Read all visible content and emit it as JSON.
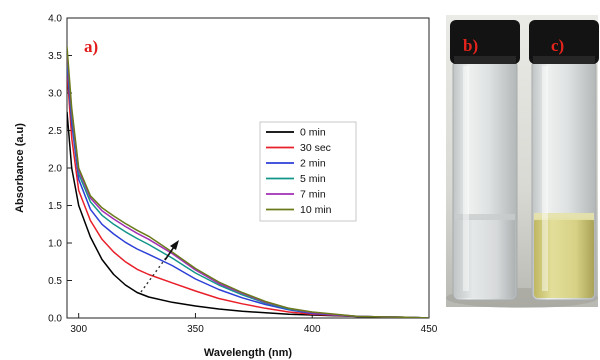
{
  "chart_data": {
    "type": "line",
    "panel_label": "a)",
    "xlabel": "Wavelength (nm)",
    "ylabel": "Absorbance (a.u)",
    "xlim": [
      295,
      450
    ],
    "ylim": [
      0,
      4.0
    ],
    "xticks": [
      300,
      350,
      400,
      450
    ],
    "yticks": [
      0.0,
      0.5,
      1.0,
      1.5,
      2.0,
      2.5,
      3.0,
      3.5,
      4.0
    ],
    "legend_position": "center-right",
    "series": [
      {
        "name": "0 min",
        "color": "#000000",
        "points": [
          [
            295,
            2.75
          ],
          [
            297,
            2.0
          ],
          [
            300,
            1.5
          ],
          [
            305,
            1.08
          ],
          [
            310,
            0.78
          ],
          [
            315,
            0.58
          ],
          [
            320,
            0.44
          ],
          [
            325,
            0.34
          ],
          [
            330,
            0.28
          ],
          [
            340,
            0.21
          ],
          [
            350,
            0.16
          ],
          [
            360,
            0.12
          ],
          [
            370,
            0.09
          ],
          [
            380,
            0.07
          ],
          [
            390,
            0.05
          ],
          [
            400,
            0.04
          ],
          [
            420,
            0.02
          ],
          [
            440,
            0.01
          ],
          [
            450,
            0.0
          ]
        ]
      },
      {
        "name": "30 sec",
        "color": "#e8202a",
        "points": [
          [
            295,
            3.3
          ],
          [
            297,
            2.4
          ],
          [
            300,
            1.7
          ],
          [
            305,
            1.3
          ],
          [
            310,
            1.05
          ],
          [
            315,
            0.88
          ],
          [
            320,
            0.75
          ],
          [
            325,
            0.65
          ],
          [
            330,
            0.58
          ],
          [
            340,
            0.47
          ],
          [
            350,
            0.36
          ],
          [
            360,
            0.26
          ],
          [
            370,
            0.19
          ],
          [
            380,
            0.13
          ],
          [
            390,
            0.08
          ],
          [
            400,
            0.05
          ],
          [
            420,
            0.02
          ],
          [
            440,
            0.01
          ],
          [
            450,
            0.0
          ]
        ]
      },
      {
        "name": "2 min",
        "color": "#2c3fd6",
        "points": [
          [
            295,
            3.4
          ],
          [
            297,
            2.6
          ],
          [
            300,
            1.85
          ],
          [
            305,
            1.45
          ],
          [
            310,
            1.25
          ],
          [
            315,
            1.12
          ],
          [
            320,
            1.01
          ],
          [
            325,
            0.92
          ],
          [
            330,
            0.85
          ],
          [
            340,
            0.7
          ],
          [
            350,
            0.52
          ],
          [
            360,
            0.38
          ],
          [
            370,
            0.27
          ],
          [
            380,
            0.18
          ],
          [
            390,
            0.11
          ],
          [
            400,
            0.06
          ],
          [
            420,
            0.02
          ],
          [
            440,
            0.01
          ],
          [
            450,
            0.0
          ]
        ]
      },
      {
        "name": "5 min",
        "color": "#12968a",
        "points": [
          [
            295,
            3.5
          ],
          [
            297,
            2.7
          ],
          [
            300,
            1.92
          ],
          [
            305,
            1.55
          ],
          [
            310,
            1.37
          ],
          [
            315,
            1.25
          ],
          [
            320,
            1.15
          ],
          [
            325,
            1.06
          ],
          [
            330,
            0.98
          ],
          [
            340,
            0.8
          ],
          [
            350,
            0.6
          ],
          [
            360,
            0.44
          ],
          [
            370,
            0.31
          ],
          [
            380,
            0.2
          ],
          [
            390,
            0.12
          ],
          [
            400,
            0.07
          ],
          [
            420,
            0.02
          ],
          [
            440,
            0.01
          ],
          [
            450,
            0.0
          ]
        ]
      },
      {
        "name": "7 min",
        "color": "#a12fb5",
        "points": [
          [
            295,
            3.55
          ],
          [
            297,
            2.75
          ],
          [
            300,
            1.97
          ],
          [
            305,
            1.6
          ],
          [
            310,
            1.43
          ],
          [
            315,
            1.32
          ],
          [
            320,
            1.22
          ],
          [
            325,
            1.13
          ],
          [
            330,
            1.05
          ],
          [
            340,
            0.86
          ],
          [
            350,
            0.64
          ],
          [
            360,
            0.46
          ],
          [
            370,
            0.33
          ],
          [
            380,
            0.21
          ],
          [
            390,
            0.13
          ],
          [
            400,
            0.07
          ],
          [
            420,
            0.02
          ],
          [
            440,
            0.01
          ],
          [
            450,
            0.0
          ]
        ]
      },
      {
        "name": "10 min",
        "color": "#6b7a1a",
        "points": [
          [
            295,
            3.62
          ],
          [
            297,
            2.8
          ],
          [
            300,
            2.0
          ],
          [
            305,
            1.63
          ],
          [
            310,
            1.47
          ],
          [
            315,
            1.36
          ],
          [
            320,
            1.26
          ],
          [
            325,
            1.17
          ],
          [
            330,
            1.09
          ],
          [
            340,
            0.88
          ],
          [
            350,
            0.66
          ],
          [
            360,
            0.48
          ],
          [
            370,
            0.34
          ],
          [
            380,
            0.22
          ],
          [
            390,
            0.13
          ],
          [
            400,
            0.08
          ],
          [
            420,
            0.02
          ],
          [
            440,
            0.01
          ],
          [
            450,
            0.0
          ]
        ]
      }
    ]
  },
  "photo": {
    "labels": [
      "b)",
      "c)"
    ],
    "solution_colors": [
      "#d8dcdd",
      "#d2cf8c"
    ]
  }
}
